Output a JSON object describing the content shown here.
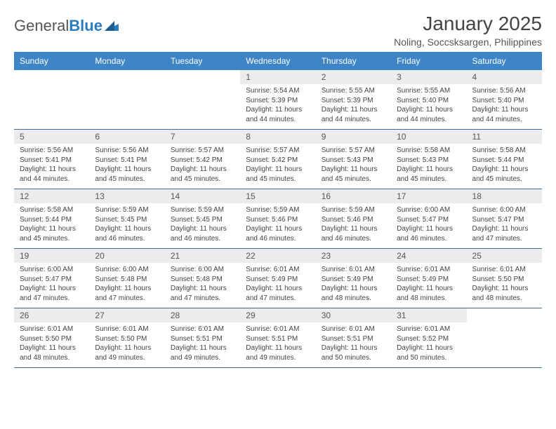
{
  "brand": {
    "name1": "General",
    "name2": "Blue"
  },
  "title": "January 2025",
  "location": "Noling, Soccsksargen, Philippines",
  "colors": {
    "header_bg": "#3d85c6",
    "header_text": "#ffffff",
    "daynum_bg": "#ececec",
    "week_divider": "#3d6d99",
    "brand_blue": "#2a7bbf",
    "text": "#444444"
  },
  "weekdays": [
    "Sunday",
    "Monday",
    "Tuesday",
    "Wednesday",
    "Thursday",
    "Friday",
    "Saturday"
  ],
  "weeks": [
    [
      {
        "n": "",
        "sr": "",
        "ss": "",
        "dl": ""
      },
      {
        "n": "",
        "sr": "",
        "ss": "",
        "dl": ""
      },
      {
        "n": "",
        "sr": "",
        "ss": "",
        "dl": ""
      },
      {
        "n": "1",
        "sr": "Sunrise: 5:54 AM",
        "ss": "Sunset: 5:39 PM",
        "dl": "Daylight: 11 hours and 44 minutes."
      },
      {
        "n": "2",
        "sr": "Sunrise: 5:55 AM",
        "ss": "Sunset: 5:39 PM",
        "dl": "Daylight: 11 hours and 44 minutes."
      },
      {
        "n": "3",
        "sr": "Sunrise: 5:55 AM",
        "ss": "Sunset: 5:40 PM",
        "dl": "Daylight: 11 hours and 44 minutes."
      },
      {
        "n": "4",
        "sr": "Sunrise: 5:56 AM",
        "ss": "Sunset: 5:40 PM",
        "dl": "Daylight: 11 hours and 44 minutes."
      }
    ],
    [
      {
        "n": "5",
        "sr": "Sunrise: 5:56 AM",
        "ss": "Sunset: 5:41 PM",
        "dl": "Daylight: 11 hours and 44 minutes."
      },
      {
        "n": "6",
        "sr": "Sunrise: 5:56 AM",
        "ss": "Sunset: 5:41 PM",
        "dl": "Daylight: 11 hours and 45 minutes."
      },
      {
        "n": "7",
        "sr": "Sunrise: 5:57 AM",
        "ss": "Sunset: 5:42 PM",
        "dl": "Daylight: 11 hours and 45 minutes."
      },
      {
        "n": "8",
        "sr": "Sunrise: 5:57 AM",
        "ss": "Sunset: 5:42 PM",
        "dl": "Daylight: 11 hours and 45 minutes."
      },
      {
        "n": "9",
        "sr": "Sunrise: 5:57 AM",
        "ss": "Sunset: 5:43 PM",
        "dl": "Daylight: 11 hours and 45 minutes."
      },
      {
        "n": "10",
        "sr": "Sunrise: 5:58 AM",
        "ss": "Sunset: 5:43 PM",
        "dl": "Daylight: 11 hours and 45 minutes."
      },
      {
        "n": "11",
        "sr": "Sunrise: 5:58 AM",
        "ss": "Sunset: 5:44 PM",
        "dl": "Daylight: 11 hours and 45 minutes."
      }
    ],
    [
      {
        "n": "12",
        "sr": "Sunrise: 5:58 AM",
        "ss": "Sunset: 5:44 PM",
        "dl": "Daylight: 11 hours and 45 minutes."
      },
      {
        "n": "13",
        "sr": "Sunrise: 5:59 AM",
        "ss": "Sunset: 5:45 PM",
        "dl": "Daylight: 11 hours and 46 minutes."
      },
      {
        "n": "14",
        "sr": "Sunrise: 5:59 AM",
        "ss": "Sunset: 5:45 PM",
        "dl": "Daylight: 11 hours and 46 minutes."
      },
      {
        "n": "15",
        "sr": "Sunrise: 5:59 AM",
        "ss": "Sunset: 5:46 PM",
        "dl": "Daylight: 11 hours and 46 minutes."
      },
      {
        "n": "16",
        "sr": "Sunrise: 5:59 AM",
        "ss": "Sunset: 5:46 PM",
        "dl": "Daylight: 11 hours and 46 minutes."
      },
      {
        "n": "17",
        "sr": "Sunrise: 6:00 AM",
        "ss": "Sunset: 5:47 PM",
        "dl": "Daylight: 11 hours and 46 minutes."
      },
      {
        "n": "18",
        "sr": "Sunrise: 6:00 AM",
        "ss": "Sunset: 5:47 PM",
        "dl": "Daylight: 11 hours and 47 minutes."
      }
    ],
    [
      {
        "n": "19",
        "sr": "Sunrise: 6:00 AM",
        "ss": "Sunset: 5:47 PM",
        "dl": "Daylight: 11 hours and 47 minutes."
      },
      {
        "n": "20",
        "sr": "Sunrise: 6:00 AM",
        "ss": "Sunset: 5:48 PM",
        "dl": "Daylight: 11 hours and 47 minutes."
      },
      {
        "n": "21",
        "sr": "Sunrise: 6:00 AM",
        "ss": "Sunset: 5:48 PM",
        "dl": "Daylight: 11 hours and 47 minutes."
      },
      {
        "n": "22",
        "sr": "Sunrise: 6:01 AM",
        "ss": "Sunset: 5:49 PM",
        "dl": "Daylight: 11 hours and 47 minutes."
      },
      {
        "n": "23",
        "sr": "Sunrise: 6:01 AM",
        "ss": "Sunset: 5:49 PM",
        "dl": "Daylight: 11 hours and 48 minutes."
      },
      {
        "n": "24",
        "sr": "Sunrise: 6:01 AM",
        "ss": "Sunset: 5:49 PM",
        "dl": "Daylight: 11 hours and 48 minutes."
      },
      {
        "n": "25",
        "sr": "Sunrise: 6:01 AM",
        "ss": "Sunset: 5:50 PM",
        "dl": "Daylight: 11 hours and 48 minutes."
      }
    ],
    [
      {
        "n": "26",
        "sr": "Sunrise: 6:01 AM",
        "ss": "Sunset: 5:50 PM",
        "dl": "Daylight: 11 hours and 48 minutes."
      },
      {
        "n": "27",
        "sr": "Sunrise: 6:01 AM",
        "ss": "Sunset: 5:50 PM",
        "dl": "Daylight: 11 hours and 49 minutes."
      },
      {
        "n": "28",
        "sr": "Sunrise: 6:01 AM",
        "ss": "Sunset: 5:51 PM",
        "dl": "Daylight: 11 hours and 49 minutes."
      },
      {
        "n": "29",
        "sr": "Sunrise: 6:01 AM",
        "ss": "Sunset: 5:51 PM",
        "dl": "Daylight: 11 hours and 49 minutes."
      },
      {
        "n": "30",
        "sr": "Sunrise: 6:01 AM",
        "ss": "Sunset: 5:51 PM",
        "dl": "Daylight: 11 hours and 50 minutes."
      },
      {
        "n": "31",
        "sr": "Sunrise: 6:01 AM",
        "ss": "Sunset: 5:52 PM",
        "dl": "Daylight: 11 hours and 50 minutes."
      },
      {
        "n": "",
        "sr": "",
        "ss": "",
        "dl": ""
      }
    ]
  ]
}
